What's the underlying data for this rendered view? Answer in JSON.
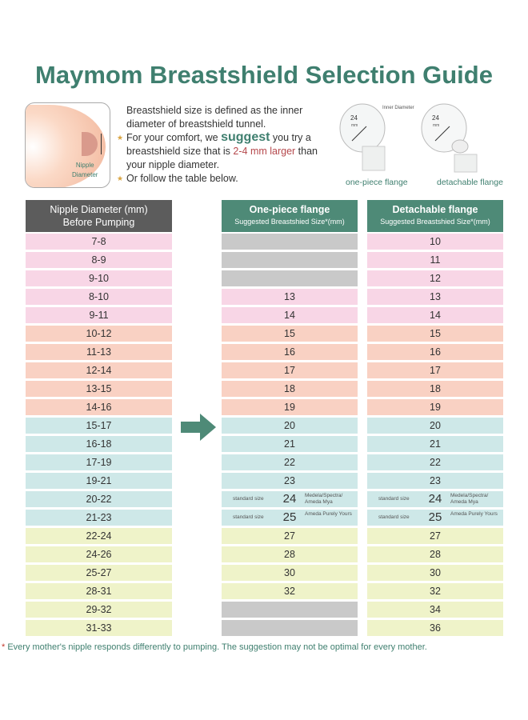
{
  "title": "Maymom Breastshield Selection Guide",
  "illustration": {
    "label_line1": "Nipple",
    "label_line2": "Diameter"
  },
  "description": {
    "line1": "Breastshield size is defined as the inner diameter of breastshield tunnel.",
    "line2_pre": "For your comfort, we ",
    "line2_emph": "suggest",
    "line2_post": " you try a breastshield size that is ",
    "line2_red1": "2-4 mm larger",
    "line2_end": " than your nipple diameter.",
    "line3": "Or follow the table below."
  },
  "flanges": {
    "inner_label": "Inner Diameter",
    "size": "24",
    "unit": "mm",
    "one_piece": "one-piece flange",
    "detachable": "detachable flange"
  },
  "columns": {
    "nipple": {
      "line1": "Nipple Diameter (mm)",
      "line2": "Before Pumping"
    },
    "one_piece": {
      "line1": "One-piece flange",
      "line2": "Suggested Breastshied Size*(mm)"
    },
    "detachable": {
      "line1": "Detachable flange",
      "line2": "Suggested Breastshied Size*(mm)"
    }
  },
  "colors": {
    "pink": "#f8d6e6",
    "salmon": "#f9d1c3",
    "cyan": "#cee8e8",
    "yellow": "#eff3c9",
    "gray": "#c9c9c9",
    "teal": "#4e8a77",
    "dark": "#5c5c5c"
  },
  "rows": [
    {
      "nipple": "7-8",
      "one": "",
      "det": "10",
      "c": "pink"
    },
    {
      "nipple": "8-9",
      "one": "",
      "det": "11",
      "c": "pink"
    },
    {
      "nipple": "9-10",
      "one": "",
      "det": "12",
      "c": "pink"
    },
    {
      "nipple": "8-10",
      "one": "13",
      "det": "13",
      "c": "pink"
    },
    {
      "nipple": "9-11",
      "one": "14",
      "det": "14",
      "c": "pink"
    },
    {
      "nipple": "10-12",
      "one": "15",
      "det": "15",
      "c": "salmon"
    },
    {
      "nipple": "11-13",
      "one": "16",
      "det": "16",
      "c": "salmon"
    },
    {
      "nipple": "12-14",
      "one": "17",
      "det": "17",
      "c": "salmon"
    },
    {
      "nipple": "13-15",
      "one": "18",
      "det": "18",
      "c": "salmon"
    },
    {
      "nipple": "14-16",
      "one": "19",
      "det": "19",
      "c": "salmon"
    },
    {
      "nipple": "15-17",
      "one": "20",
      "det": "20",
      "c": "cyan"
    },
    {
      "nipple": "16-18",
      "one": "21",
      "det": "21",
      "c": "cyan"
    },
    {
      "nipple": "17-19",
      "one": "22",
      "det": "22",
      "c": "cyan"
    },
    {
      "nipple": "19-21",
      "one": "23",
      "det": "23",
      "c": "cyan"
    },
    {
      "nipple": "20-22",
      "one": "24",
      "det": "24",
      "c": "cyan",
      "std": "standard size",
      "brand": "Medela/Spectra/ Ameda Mya"
    },
    {
      "nipple": "21-23",
      "one": "25",
      "det": "25",
      "c": "cyan",
      "std": "standard size",
      "brand": "Ameda Purely Yours"
    },
    {
      "nipple": "22-24",
      "one": "27",
      "det": "27",
      "c": "yellow"
    },
    {
      "nipple": "24-26",
      "one": "28",
      "det": "28",
      "c": "yellow"
    },
    {
      "nipple": "25-27",
      "one": "30",
      "det": "30",
      "c": "yellow"
    },
    {
      "nipple": "28-31",
      "one": "32",
      "det": "32",
      "c": "yellow"
    },
    {
      "nipple": "29-32",
      "one": "",
      "det": "34",
      "c": "yellow"
    },
    {
      "nipple": "31-33",
      "one": "",
      "det": "36",
      "c": "yellow"
    }
  ],
  "footnote": {
    "star": "*",
    "text": " Every mother's nipple responds differently to pumping. The suggestion may not be optimal for every mother."
  }
}
